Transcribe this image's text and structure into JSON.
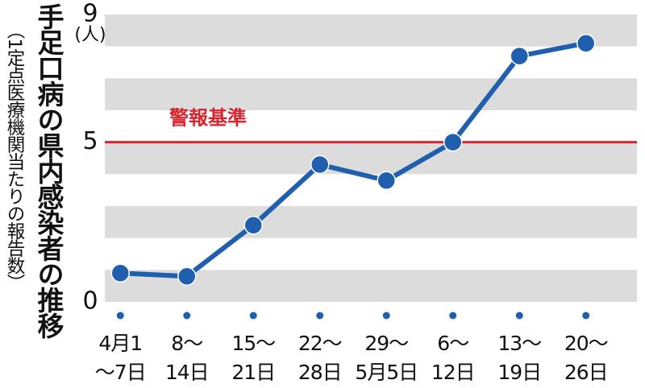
{
  "chart_data": {
    "type": "line",
    "title": "手足口病の県内感染者の推移",
    "subtitle": "（1定点医療機関当たりの報告数）",
    "y_unit": "(人)",
    "categories": [
      [
        "4月1",
        "～7日"
      ],
      [
        "8～",
        "14日"
      ],
      [
        "15～",
        "21日"
      ],
      [
        "22～",
        "28日"
      ],
      [
        "29～",
        "5月5日"
      ],
      [
        "6～",
        "12日"
      ],
      [
        "13～",
        "19日"
      ],
      [
        "20～",
        "26日"
      ]
    ],
    "series": [
      {
        "name": "報告数",
        "color": "#1f5fae",
        "values": [
          0.9,
          0.8,
          2.4,
          4.3,
          3.8,
          5.0,
          7.7,
          8.1
        ]
      }
    ],
    "reference_line": {
      "value": 5,
      "label": "警報基準",
      "color": "#d7262e"
    },
    "ylim": [
      0,
      9
    ],
    "yticks": [
      0,
      5,
      9
    ],
    "grid": "bands"
  }
}
